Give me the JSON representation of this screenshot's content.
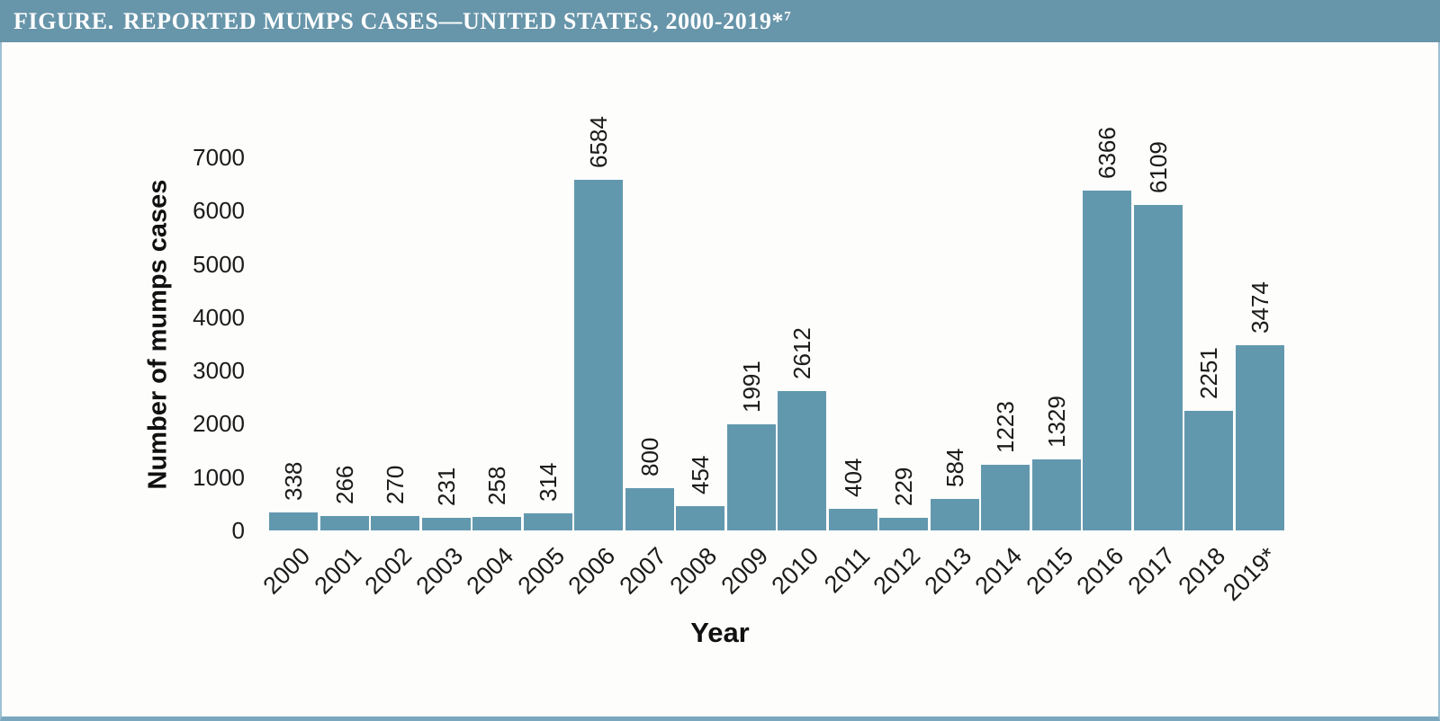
{
  "header": {
    "prefix": "FIGURE.",
    "title_rest": "REPORTED MUMPS CASES—UNITED STATES, 2000-2019*",
    "superscript": "7"
  },
  "chart_data": {
    "type": "bar",
    "title": "FIGURE. REPORTED MUMPS CASES—UNITED STATES, 2000-2019*7",
    "categories": [
      "2000",
      "2001",
      "2002",
      "2003",
      "2004",
      "2005",
      "2006",
      "2007",
      "2008",
      "2009",
      "2010",
      "2011",
      "2012",
      "2013",
      "2014",
      "2015",
      "2016",
      "2017",
      "2018",
      "2019*"
    ],
    "values": [
      338,
      266,
      270,
      231,
      258,
      314,
      6584,
      800,
      454,
      1991,
      2612,
      404,
      229,
      584,
      1223,
      1329,
      6366,
      6109,
      2251,
      3474
    ],
    "xlabel": "Year",
    "ylabel": "Number of mumps cases",
    "ylim": [
      0,
      7000
    ],
    "yticks": [
      0,
      1000,
      2000,
      3000,
      4000,
      5000,
      6000,
      7000
    ],
    "grid": false,
    "legend": "none",
    "bar_value_labels_shown": true,
    "bar_value_label_rotation_deg": 90,
    "x_tick_rotation_deg": 45
  },
  "colors": {
    "header_bg": "#6795aa",
    "header_text": "#ffffff",
    "bar": "#6298ae",
    "border_side": "#9dbfd2",
    "border_bottom": "#7aa7bd",
    "label_text": "#1b1b1b"
  }
}
